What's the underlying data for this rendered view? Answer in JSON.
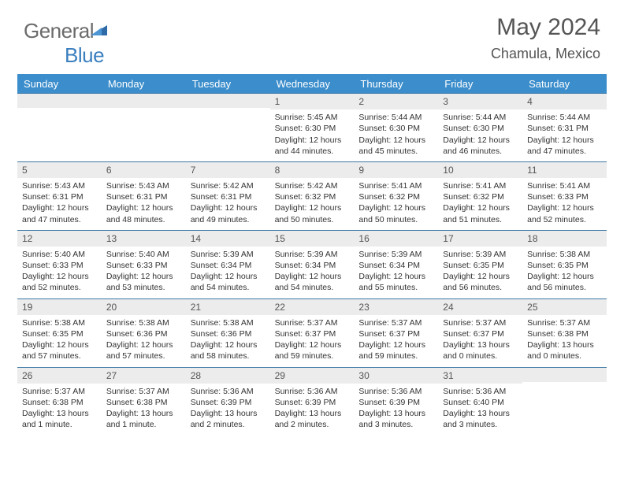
{
  "logo": {
    "text1": "General",
    "text2": "Blue"
  },
  "title": "May 2024",
  "location": "Chamula, Mexico",
  "colors": {
    "header_bg": "#3b8dcb",
    "header_text": "#ffffff",
    "row_border": "#3d79a8",
    "daynum_bg": "#ececec",
    "logo_gray": "#6b6b6b",
    "logo_blue": "#3b7fbf",
    "body_text": "#333333",
    "title_text": "#555555"
  },
  "font": {
    "family": "Arial",
    "day_size_pt": 8,
    "header_size_pt": 10,
    "title_size_pt": 22
  },
  "weekdays": [
    "Sunday",
    "Monday",
    "Tuesday",
    "Wednesday",
    "Thursday",
    "Friday",
    "Saturday"
  ],
  "weeks": [
    [
      {
        "n": "",
        "sr": "",
        "ss": "",
        "dl": ""
      },
      {
        "n": "",
        "sr": "",
        "ss": "",
        "dl": ""
      },
      {
        "n": "",
        "sr": "",
        "ss": "",
        "dl": ""
      },
      {
        "n": "1",
        "sr": "Sunrise: 5:45 AM",
        "ss": "Sunset: 6:30 PM",
        "dl": "Daylight: 12 hours and 44 minutes."
      },
      {
        "n": "2",
        "sr": "Sunrise: 5:44 AM",
        "ss": "Sunset: 6:30 PM",
        "dl": "Daylight: 12 hours and 45 minutes."
      },
      {
        "n": "3",
        "sr": "Sunrise: 5:44 AM",
        "ss": "Sunset: 6:30 PM",
        "dl": "Daylight: 12 hours and 46 minutes."
      },
      {
        "n": "4",
        "sr": "Sunrise: 5:44 AM",
        "ss": "Sunset: 6:31 PM",
        "dl": "Daylight: 12 hours and 47 minutes."
      }
    ],
    [
      {
        "n": "5",
        "sr": "Sunrise: 5:43 AM",
        "ss": "Sunset: 6:31 PM",
        "dl": "Daylight: 12 hours and 47 minutes."
      },
      {
        "n": "6",
        "sr": "Sunrise: 5:43 AM",
        "ss": "Sunset: 6:31 PM",
        "dl": "Daylight: 12 hours and 48 minutes."
      },
      {
        "n": "7",
        "sr": "Sunrise: 5:42 AM",
        "ss": "Sunset: 6:31 PM",
        "dl": "Daylight: 12 hours and 49 minutes."
      },
      {
        "n": "8",
        "sr": "Sunrise: 5:42 AM",
        "ss": "Sunset: 6:32 PM",
        "dl": "Daylight: 12 hours and 50 minutes."
      },
      {
        "n": "9",
        "sr": "Sunrise: 5:41 AM",
        "ss": "Sunset: 6:32 PM",
        "dl": "Daylight: 12 hours and 50 minutes."
      },
      {
        "n": "10",
        "sr": "Sunrise: 5:41 AM",
        "ss": "Sunset: 6:32 PM",
        "dl": "Daylight: 12 hours and 51 minutes."
      },
      {
        "n": "11",
        "sr": "Sunrise: 5:41 AM",
        "ss": "Sunset: 6:33 PM",
        "dl": "Daylight: 12 hours and 52 minutes."
      }
    ],
    [
      {
        "n": "12",
        "sr": "Sunrise: 5:40 AM",
        "ss": "Sunset: 6:33 PM",
        "dl": "Daylight: 12 hours and 52 minutes."
      },
      {
        "n": "13",
        "sr": "Sunrise: 5:40 AM",
        "ss": "Sunset: 6:33 PM",
        "dl": "Daylight: 12 hours and 53 minutes."
      },
      {
        "n": "14",
        "sr": "Sunrise: 5:39 AM",
        "ss": "Sunset: 6:34 PM",
        "dl": "Daylight: 12 hours and 54 minutes."
      },
      {
        "n": "15",
        "sr": "Sunrise: 5:39 AM",
        "ss": "Sunset: 6:34 PM",
        "dl": "Daylight: 12 hours and 54 minutes."
      },
      {
        "n": "16",
        "sr": "Sunrise: 5:39 AM",
        "ss": "Sunset: 6:34 PM",
        "dl": "Daylight: 12 hours and 55 minutes."
      },
      {
        "n": "17",
        "sr": "Sunrise: 5:39 AM",
        "ss": "Sunset: 6:35 PM",
        "dl": "Daylight: 12 hours and 56 minutes."
      },
      {
        "n": "18",
        "sr": "Sunrise: 5:38 AM",
        "ss": "Sunset: 6:35 PM",
        "dl": "Daylight: 12 hours and 56 minutes."
      }
    ],
    [
      {
        "n": "19",
        "sr": "Sunrise: 5:38 AM",
        "ss": "Sunset: 6:35 PM",
        "dl": "Daylight: 12 hours and 57 minutes."
      },
      {
        "n": "20",
        "sr": "Sunrise: 5:38 AM",
        "ss": "Sunset: 6:36 PM",
        "dl": "Daylight: 12 hours and 57 minutes."
      },
      {
        "n": "21",
        "sr": "Sunrise: 5:38 AM",
        "ss": "Sunset: 6:36 PM",
        "dl": "Daylight: 12 hours and 58 minutes."
      },
      {
        "n": "22",
        "sr": "Sunrise: 5:37 AM",
        "ss": "Sunset: 6:37 PM",
        "dl": "Daylight: 12 hours and 59 minutes."
      },
      {
        "n": "23",
        "sr": "Sunrise: 5:37 AM",
        "ss": "Sunset: 6:37 PM",
        "dl": "Daylight: 12 hours and 59 minutes."
      },
      {
        "n": "24",
        "sr": "Sunrise: 5:37 AM",
        "ss": "Sunset: 6:37 PM",
        "dl": "Daylight: 13 hours and 0 minutes."
      },
      {
        "n": "25",
        "sr": "Sunrise: 5:37 AM",
        "ss": "Sunset: 6:38 PM",
        "dl": "Daylight: 13 hours and 0 minutes."
      }
    ],
    [
      {
        "n": "26",
        "sr": "Sunrise: 5:37 AM",
        "ss": "Sunset: 6:38 PM",
        "dl": "Daylight: 13 hours and 1 minute."
      },
      {
        "n": "27",
        "sr": "Sunrise: 5:37 AM",
        "ss": "Sunset: 6:38 PM",
        "dl": "Daylight: 13 hours and 1 minute."
      },
      {
        "n": "28",
        "sr": "Sunrise: 5:36 AM",
        "ss": "Sunset: 6:39 PM",
        "dl": "Daylight: 13 hours and 2 minutes."
      },
      {
        "n": "29",
        "sr": "Sunrise: 5:36 AM",
        "ss": "Sunset: 6:39 PM",
        "dl": "Daylight: 13 hours and 2 minutes."
      },
      {
        "n": "30",
        "sr": "Sunrise: 5:36 AM",
        "ss": "Sunset: 6:39 PM",
        "dl": "Daylight: 13 hours and 3 minutes."
      },
      {
        "n": "31",
        "sr": "Sunrise: 5:36 AM",
        "ss": "Sunset: 6:40 PM",
        "dl": "Daylight: 13 hours and 3 minutes."
      },
      {
        "n": "",
        "sr": "",
        "ss": "",
        "dl": ""
      }
    ]
  ]
}
